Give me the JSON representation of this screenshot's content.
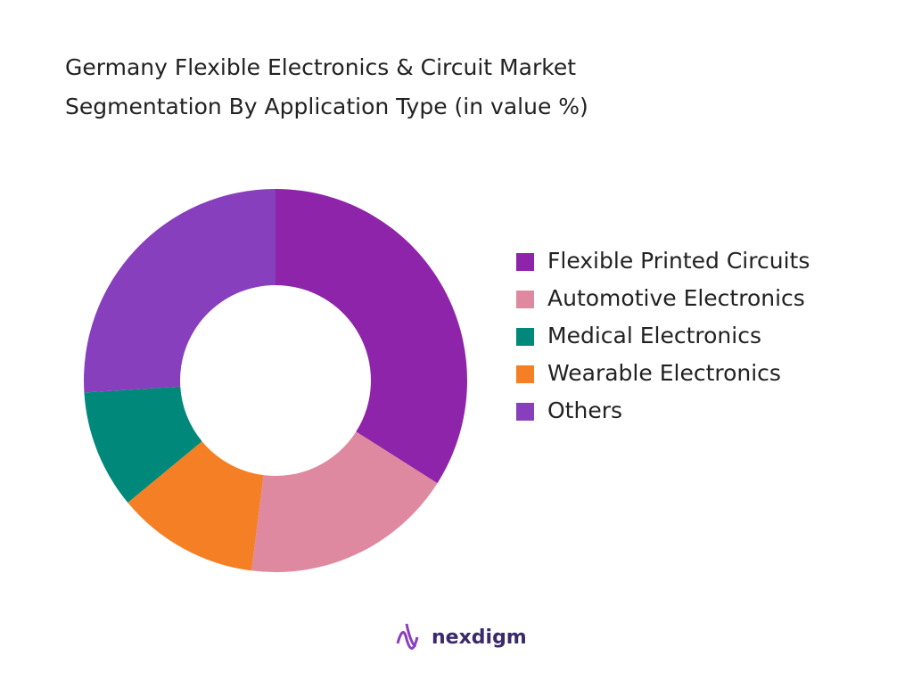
{
  "chart_data": {
    "type": "donut",
    "title": [
      "Germany Flexible Electronics & Circuit Market",
      "Segmentation By Application Type (in value %)"
    ],
    "categories": [
      "Flexible Printed Circuits",
      "Automotive Electronics",
      "Wearable Electronics",
      "Medical Electronics",
      "Others"
    ],
    "values": [
      34,
      18,
      12,
      10,
      26
    ],
    "colors": [
      "#8e24aa",
      "#df89a0",
      "#f47f24",
      "#00897b",
      "#873fbd"
    ],
    "legend_order": [
      0,
      1,
      3,
      2,
      4
    ]
  },
  "logo": "nexdigm"
}
